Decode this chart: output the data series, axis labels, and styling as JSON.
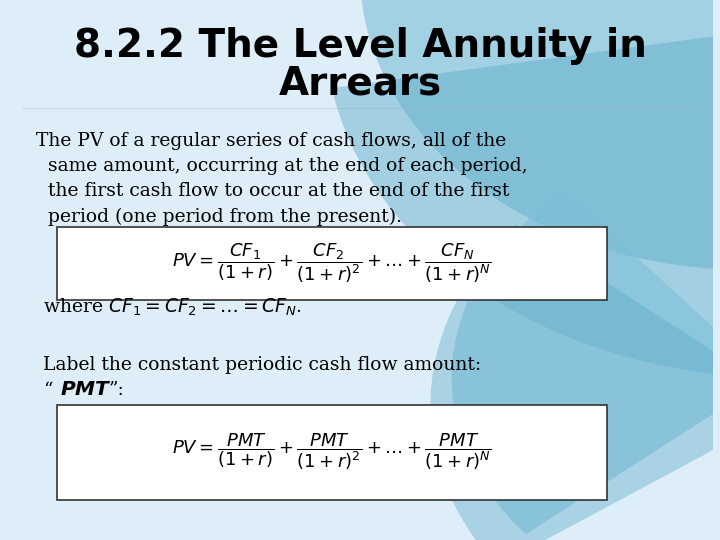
{
  "title_line1": "8.2.2 The Level Annuity in",
  "title_line2": "Arrears",
  "title_fontsize": 28,
  "title_bold": true,
  "body_text": "The PV of a regular series of cash flows, all of the\n  same amount, occurring at the end of each period,\n  the first cash flow to occur at the end of the first\n  period (one period from the present).",
  "body_fontsize": 13.5,
  "where_text": "where ",
  "label_text": "Label the constant periodic cash flow amount:\n“",
  "pmt_label": "PMT",
  "label_end": "”:",
  "bg_color_top": "#b8dff0",
  "bg_color_main": "#deeef8",
  "title_color": "#000000",
  "body_color": "#000000",
  "formula1": "$PV = \\dfrac{CF_1}{(1+r)} + \\dfrac{CF_2}{(1+r)^2} + \\ldots + \\dfrac{CF_N}{(1+r)^N}$",
  "formula2": "$PV = \\dfrac{PMT}{(1+r)} + \\dfrac{PMT}{(1+r)^2} + \\ldots + \\dfrac{PMT}{(1+r)^N}$",
  "where_formula": "$CF_1 = CF_2 = \\ldots = CF_N$",
  "formula_fontsize": 13,
  "box_facecolor": "#ffffff",
  "box_edgecolor": "#333333"
}
